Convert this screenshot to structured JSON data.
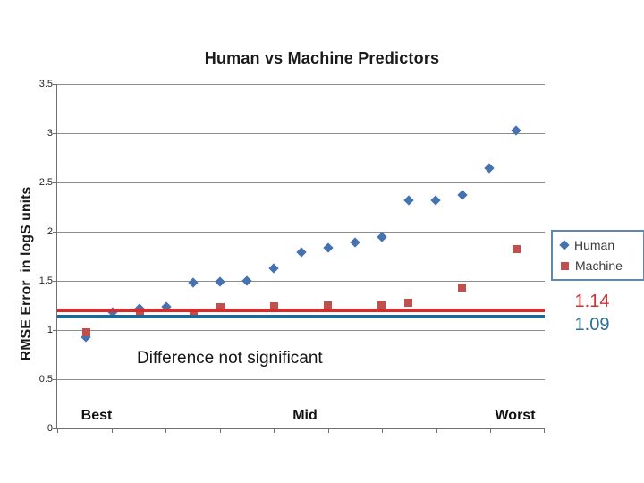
{
  "chart": {
    "title": "Human vs Machine Predictors",
    "y_axis_title": "RMSE Error  in logS units",
    "annotation": "Difference not significant",
    "side_values": [
      {
        "text": "1.14",
        "color": "#cc3333"
      },
      {
        "text": "1.09",
        "color": "#2b6e96"
      }
    ]
  },
  "chart_data": {
    "type": "scatter",
    "title": "Human vs Machine Predictors",
    "ylabel": "RMSE Error in logS units",
    "x_axis_labels": [
      "Best",
      "Mid",
      "Worst"
    ],
    "ylim": [
      0,
      3.5
    ],
    "ytick_step": 0.5,
    "grid": true,
    "legend_position": "right",
    "num_points": 17,
    "series": [
      {
        "name": "Human",
        "marker": "diamond",
        "color": "#4673b0",
        "values": [
          0.93,
          1.18,
          1.22,
          1.24,
          1.48,
          1.49,
          1.5,
          1.63,
          1.79,
          1.84,
          1.89,
          1.95,
          2.32,
          2.32,
          2.37,
          2.65,
          3.03
        ]
      },
      {
        "name": "Machine",
        "marker": "square",
        "color": "#c0504d",
        "values": [
          0.98,
          null,
          1.16,
          null,
          1.16,
          1.23,
          null,
          1.24,
          null,
          1.25,
          null,
          1.26,
          1.28,
          null,
          1.43,
          null,
          1.82
        ]
      }
    ],
    "mean_lines": [
      {
        "label": "1.14",
        "value": 1.14,
        "display_value": 1.2,
        "color": "#d92b2b"
      },
      {
        "label": "1.09",
        "value": 1.09,
        "display_value": 1.135,
        "color": "#20688f"
      }
    ],
    "annotation": "Difference not significant"
  }
}
